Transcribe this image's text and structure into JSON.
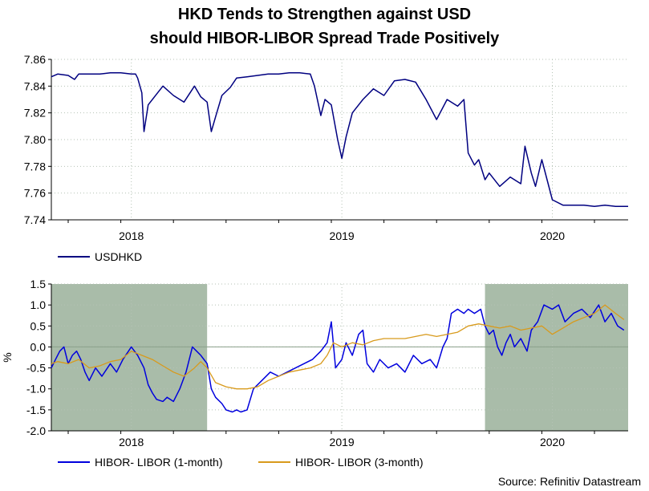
{
  "title_line1": "HKD Tends to Strengthen against USD",
  "title_line2": "should HIBOR-LIBOR Spread Trade Positively",
  "source": "Source: Refinitiv Datastream",
  "colors": {
    "usdhkd": "#000080",
    "hibor1m": "#0000dd",
    "hibor3m": "#d89a1c",
    "shade": "#a9bca9",
    "grid": "#b5c2b5"
  },
  "chart_data": [
    {
      "type": "line",
      "title": "",
      "xlabel": "",
      "ylabel": "",
      "xlim": [
        2017.62,
        2020.36
      ],
      "ylim": [
        7.74,
        7.86
      ],
      "yticks": [
        7.86,
        7.84,
        7.82,
        7.8,
        7.78,
        7.76,
        7.74
      ],
      "ytick_labels": [
        "7.86",
        "7.84",
        "7.82",
        "7.80",
        "7.78",
        "7.76",
        "7.74"
      ],
      "xtick_labels": [
        "2018",
        "2019",
        "2020"
      ],
      "x_label_positions": [
        2018.0,
        2019.0,
        2020.0
      ],
      "legend": "bottom-left",
      "series": [
        {
          "name": "USDHKD",
          "x": [
            2017.62,
            2017.65,
            2017.7,
            2017.73,
            2017.75,
            2017.8,
            2017.85,
            2017.9,
            2017.95,
            2018.0,
            2018.02,
            2018.03,
            2018.05,
            2018.06,
            2018.08,
            2018.12,
            2018.15,
            2018.2,
            2018.25,
            2018.3,
            2018.33,
            2018.36,
            2018.38,
            2018.4,
            2018.43,
            2018.47,
            2018.5,
            2018.55,
            2018.6,
            2018.65,
            2018.7,
            2018.75,
            2018.8,
            2018.85,
            2018.87,
            2018.9,
            2018.92,
            2018.95,
            2018.98,
            2019.0,
            2019.02,
            2019.05,
            2019.1,
            2019.15,
            2019.2,
            2019.25,
            2019.3,
            2019.35,
            2019.4,
            2019.45,
            2019.5,
            2019.55,
            2019.58,
            2019.6,
            2019.63,
            2019.65,
            2019.68,
            2019.7,
            2019.75,
            2019.8,
            2019.85,
            2019.87,
            2019.9,
            2019.92,
            2019.95,
            2020.0,
            2020.05,
            2020.1,
            2020.15,
            2020.2,
            2020.25,
            2020.3,
            2020.36
          ],
          "values": [
            7.847,
            7.849,
            7.848,
            7.845,
            7.849,
            7.849,
            7.849,
            7.85,
            7.85,
            7.849,
            7.849,
            7.846,
            7.835,
            7.806,
            7.826,
            7.834,
            7.84,
            7.833,
            7.828,
            7.84,
            7.832,
            7.828,
            7.806,
            7.817,
            7.833,
            7.839,
            7.846,
            7.847,
            7.848,
            7.849,
            7.849,
            7.85,
            7.85,
            7.849,
            7.84,
            7.818,
            7.83,
            7.826,
            7.8,
            7.786,
            7.802,
            7.82,
            7.83,
            7.838,
            7.833,
            7.844,
            7.845,
            7.843,
            7.83,
            7.815,
            7.83,
            7.825,
            7.83,
            7.79,
            7.781,
            7.785,
            7.77,
            7.775,
            7.765,
            7.772,
            7.767,
            7.795,
            7.775,
            7.765,
            7.785,
            7.755,
            7.751,
            7.751,
            7.751,
            7.75,
            7.751,
            7.75,
            7.75
          ]
        }
      ]
    },
    {
      "type": "line",
      "title": "",
      "xlabel": "",
      "ylabel": "%",
      "xlim": [
        2017.62,
        2020.36
      ],
      "ylim": [
        -2.0,
        1.5
      ],
      "yticks": [
        1.5,
        1.0,
        0.5,
        0.0,
        -0.5,
        -1.0,
        -1.5,
        -2.0
      ],
      "ytick_labels": [
        "1.5",
        "1.0",
        "0.5",
        "0.0",
        "-0.5",
        "-1.0",
        "-1.5",
        "-2.0"
      ],
      "xtick_labels": [
        "2018",
        "2019",
        "2020"
      ],
      "x_label_positions": [
        2018.0,
        2019.0,
        2020.0
      ],
      "shaded_ranges": [
        [
          2017.62,
          2018.36
        ],
        [
          2019.68,
          2020.36
        ]
      ],
      "legend": "bottom",
      "series": [
        {
          "name": "HIBOR- LIBOR (1-month)",
          "x": [
            2017.62,
            2017.64,
            2017.66,
            2017.68,
            2017.7,
            2017.72,
            2017.74,
            2017.76,
            2017.78,
            2017.8,
            2017.83,
            2017.86,
            2017.9,
            2017.93,
            2017.96,
            2018.0,
            2018.03,
            2018.06,
            2018.08,
            2018.1,
            2018.12,
            2018.15,
            2018.17,
            2018.2,
            2018.23,
            2018.26,
            2018.28,
            2018.29,
            2018.31,
            2018.33,
            2018.36,
            2018.38,
            2018.4,
            2018.43,
            2018.45,
            2018.48,
            2018.5,
            2018.52,
            2018.55,
            2018.58,
            2018.62,
            2018.66,
            2018.7,
            2018.74,
            2018.78,
            2018.82,
            2018.86,
            2018.9,
            2018.93,
            2018.95,
            2018.97,
            2019.0,
            2019.02,
            2019.05,
            2019.08,
            2019.1,
            2019.12,
            2019.15,
            2019.18,
            2019.22,
            2019.26,
            2019.3,
            2019.34,
            2019.38,
            2019.42,
            2019.45,
            2019.48,
            2019.5,
            2019.52,
            2019.55,
            2019.58,
            2019.6,
            2019.63,
            2019.66,
            2019.68,
            2019.7,
            2019.72,
            2019.74,
            2019.76,
            2019.78,
            2019.8,
            2019.82,
            2019.85,
            2019.88,
            2019.9,
            2019.93,
            2019.96,
            2020.0,
            2020.03,
            2020.06,
            2020.1,
            2020.14,
            2020.18,
            2020.22,
            2020.25,
            2020.28,
            2020.31,
            2020.34
          ],
          "values": [
            -0.5,
            -0.3,
            -0.1,
            0.0,
            -0.4,
            -0.2,
            -0.1,
            -0.3,
            -0.6,
            -0.8,
            -0.5,
            -0.7,
            -0.4,
            -0.6,
            -0.3,
            0.0,
            -0.2,
            -0.5,
            -0.9,
            -1.1,
            -1.25,
            -1.3,
            -1.2,
            -1.3,
            -1.0,
            -0.6,
            -0.2,
            0.0,
            -0.1,
            -0.2,
            -0.4,
            -1.0,
            -1.2,
            -1.35,
            -1.5,
            -1.55,
            -1.5,
            -1.55,
            -1.5,
            -1.0,
            -0.8,
            -0.6,
            -0.7,
            -0.6,
            -0.5,
            -0.4,
            -0.3,
            -0.1,
            0.1,
            0.6,
            -0.5,
            -0.3,
            0.1,
            -0.2,
            0.3,
            0.4,
            -0.4,
            -0.6,
            -0.3,
            -0.5,
            -0.4,
            -0.6,
            -0.2,
            -0.4,
            -0.3,
            -0.5,
            0.0,
            0.2,
            0.8,
            0.9,
            0.8,
            0.9,
            0.8,
            0.9,
            0.5,
            0.3,
            0.4,
            0.0,
            -0.2,
            0.1,
            0.3,
            0.0,
            0.2,
            -0.1,
            0.4,
            0.6,
            1.0,
            0.9,
            1.0,
            0.6,
            0.8,
            0.9,
            0.7,
            1.0,
            0.6,
            0.8,
            0.5,
            0.4
          ]
        },
        {
          "name": "HIBOR- LIBOR (3-month)",
          "x": [
            2017.62,
            2017.65,
            2017.7,
            2017.75,
            2017.8,
            2017.85,
            2017.9,
            2017.95,
            2018.0,
            2018.05,
            2018.1,
            2018.15,
            2018.2,
            2018.25,
            2018.3,
            2018.33,
            2018.36,
            2018.4,
            2018.45,
            2018.5,
            2018.55,
            2018.6,
            2018.65,
            2018.7,
            2018.75,
            2018.8,
            2018.85,
            2018.9,
            2018.93,
            2018.96,
            2019.0,
            2019.05,
            2019.1,
            2019.15,
            2019.2,
            2019.25,
            2019.3,
            2019.35,
            2019.4,
            2019.45,
            2019.5,
            2019.55,
            2019.6,
            2019.65,
            2019.7,
            2019.75,
            2019.8,
            2019.85,
            2019.9,
            2019.95,
            2020.0,
            2020.05,
            2020.1,
            2020.15,
            2020.2,
            2020.25,
            2020.3,
            2020.34
          ],
          "values": [
            -0.4,
            -0.35,
            -0.4,
            -0.3,
            -0.5,
            -0.45,
            -0.35,
            -0.3,
            -0.1,
            -0.2,
            -0.3,
            -0.45,
            -0.6,
            -0.7,
            -0.5,
            -0.35,
            -0.5,
            -0.85,
            -0.95,
            -1.0,
            -1.0,
            -0.95,
            -0.8,
            -0.7,
            -0.6,
            -0.55,
            -0.5,
            -0.4,
            -0.2,
            0.1,
            0.0,
            0.1,
            0.05,
            0.15,
            0.2,
            0.2,
            0.2,
            0.25,
            0.3,
            0.25,
            0.3,
            0.35,
            0.5,
            0.55,
            0.5,
            0.45,
            0.5,
            0.4,
            0.45,
            0.5,
            0.3,
            0.45,
            0.6,
            0.7,
            0.8,
            1.0,
            0.8,
            0.65
          ]
        }
      ]
    }
  ]
}
